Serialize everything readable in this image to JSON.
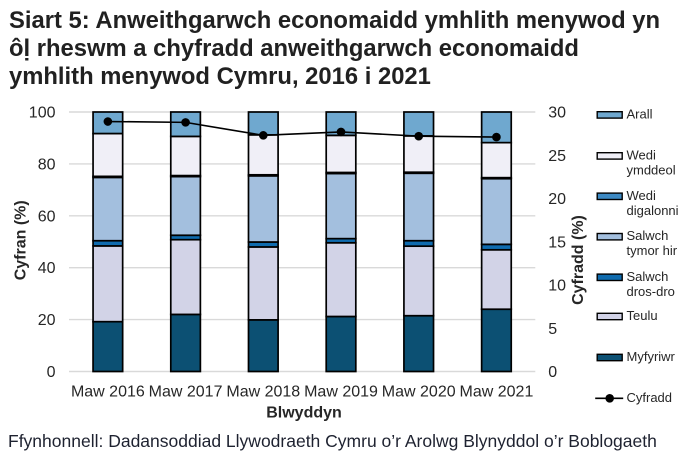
{
  "title": {
    "lines": [
      "Siart 5: Anweithgarwch economaidd ymhlith menywod yn",
      "ôḷ rheswm a chyfradd anweithgarwch economaidd",
      "ymhlith menywod Cymru, 2016 i 2021"
    ]
  },
  "source_note": "Ffynhonnell: Dadansoddiad Llywodraeth Cymru o’r Arolwg Blynyddol o’r Boblogaeth",
  "chart_data": {
    "type": "bar",
    "stacked": true,
    "percent_stacked": true,
    "grid": true,
    "gridline_color": "#d9d9d9",
    "categories": [
      "Maw 2016",
      "Maw 2017",
      "Maw 2018",
      "Maw 2019",
      "Maw 2020",
      "Maw 2021"
    ],
    "xlabel": "Blwyddyn",
    "left_axis": {
      "label": "Cyfran (%)",
      "min": 0,
      "max": 100,
      "step": 20,
      "ticks": [
        0,
        20,
        40,
        60,
        80,
        100
      ]
    },
    "right_axis": {
      "label": "Cyfradd (%)",
      "min": 0,
      "max": 30,
      "step": 5,
      "ticks": [
        0,
        5,
        10,
        15,
        20,
        25,
        30
      ]
    },
    "series": [
      {
        "name": "Myfyriwr",
        "color": "#0c5073",
        "values": [
          19.2,
          22.0,
          19.9,
          21.2,
          21.5,
          24.0
        ]
      },
      {
        "name": "Teulu",
        "color": "#d2d3e7",
        "values": [
          29.2,
          28.8,
          28.1,
          28.4,
          26.8,
          22.9
        ]
      },
      {
        "name": "Salwch dros-dro",
        "color": "#0f6bae",
        "values": [
          2.0,
          1.7,
          1.9,
          1.6,
          2.1,
          2.1
        ]
      },
      {
        "name": "Salwch tymor hir",
        "color": "#a3bfde",
        "values": [
          24.4,
          22.6,
          25.5,
          25.1,
          26.0,
          25.3
        ]
      },
      {
        "name": "Wedi digalonni",
        "color": "#3d8ac4",
        "values": [
          0.4,
          0.4,
          0.4,
          0.4,
          0.4,
          0.4
        ]
      },
      {
        "name": "Wedi ymddeol",
        "color": "#f0eff7",
        "values": [
          16.5,
          15.1,
          15.4,
          14.3,
          14.0,
          13.5
        ]
      },
      {
        "name": "Arall",
        "color": "#6fa8cf",
        "values": [
          8.3,
          9.4,
          8.8,
          9.0,
          9.2,
          11.8
        ]
      }
    ],
    "line_series": {
      "name": "Cyfradd",
      "color": "#000000",
      "axis": "right",
      "values": [
        28.9,
        28.8,
        27.3,
        27.7,
        27.2,
        27.1
      ]
    },
    "legend": {
      "position": "right",
      "items": [
        {
          "label_lines": [
            "Arall"
          ],
          "swatch": "#6fa8cf",
          "kind": "box"
        },
        {
          "label_lines": [
            "Wedi",
            "ymddeol"
          ],
          "swatch": "#f0eff7",
          "kind": "box"
        },
        {
          "label_lines": [
            "Wedi",
            "digalonni"
          ],
          "swatch": "#3d8ac4",
          "kind": "box"
        },
        {
          "label_lines": [
            "Salwch",
            "tymor hir"
          ],
          "swatch": "#a3bfde",
          "kind": "box"
        },
        {
          "label_lines": [
            "Salwch",
            "dros-dro"
          ],
          "swatch": "#0f6bae",
          "kind": "box"
        },
        {
          "label_lines": [
            "Teulu"
          ],
          "swatch": "#d2d3e7",
          "kind": "box"
        },
        {
          "label_lines": [
            "Myfyriwr"
          ],
          "swatch": "#0c5073",
          "kind": "box"
        },
        {
          "label_lines": [
            "Cyfradd"
          ],
          "swatch": "#000000",
          "kind": "line-marker"
        }
      ]
    }
  }
}
